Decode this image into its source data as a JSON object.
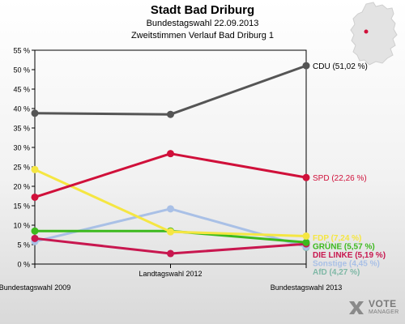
{
  "header": {
    "title": "Stadt Bad Driburg",
    "subtitle": "Bundestagswahl 22.09.2013",
    "subtitle2": "Zweitstimmen Verlauf Bad Driburg 1"
  },
  "logo": {
    "word1": "VOTE",
    "word2": "MANAGER",
    "icon": "vote-manager-x-logo"
  },
  "colors": {
    "background": "#f0f0f0",
    "plot_border": "#000000"
  },
  "chart_data": {
    "type": "line",
    "title": "Stadt Bad Driburg",
    "categories": [
      "Bundestagswahl 2009",
      "Landtagswahl 2012",
      "Bundestagswahl 2013"
    ],
    "ylim": [
      0,
      55
    ],
    "yticks": [
      0,
      5,
      10,
      15,
      20,
      25,
      30,
      35,
      40,
      45,
      50,
      55
    ],
    "ytick_labels": [
      "0 %",
      "5 %",
      "10 %",
      "15 %",
      "20 %",
      "25 %",
      "30 %",
      "35 %",
      "40 %",
      "45 %",
      "50 %",
      "55 %"
    ],
    "grid": false,
    "series": [
      {
        "name": "CDU",
        "color": "#555555",
        "values": [
          38.8,
          38.5,
          51.02
        ],
        "end_label": "CDU (51,02 %)"
      },
      {
        "name": "SPD",
        "color": "#d0103a",
        "values": [
          17.2,
          28.4,
          22.26
        ],
        "end_label": "SPD (22,26 %)"
      },
      {
        "name": "FDP",
        "color": "#f5e642",
        "values": [
          24.3,
          8.3,
          7.2
        ],
        "end_label": "FDP (7,24 %)"
      },
      {
        "name": "GRÜNE",
        "color": "#3cb91e",
        "values": [
          8.5,
          8.5,
          5.57
        ],
        "end_label": "GRÜNE (5,57 %)"
      },
      {
        "name": "DIE LINKE",
        "color": "#c8174f",
        "values": [
          6.6,
          2.7,
          5.19
        ],
        "end_label": "DIE LINKE (5,19 %)"
      },
      {
        "name": "Sonstige",
        "color": "#a9c0e6",
        "values": [
          5.8,
          14.2,
          4.45
        ],
        "end_label": "Sonstige (4,45 %)"
      },
      {
        "name": "AfD",
        "color": "#7fb8a6",
        "values": [
          null,
          null,
          4.27
        ],
        "end_label": "AfD (4,27 %)"
      }
    ]
  }
}
